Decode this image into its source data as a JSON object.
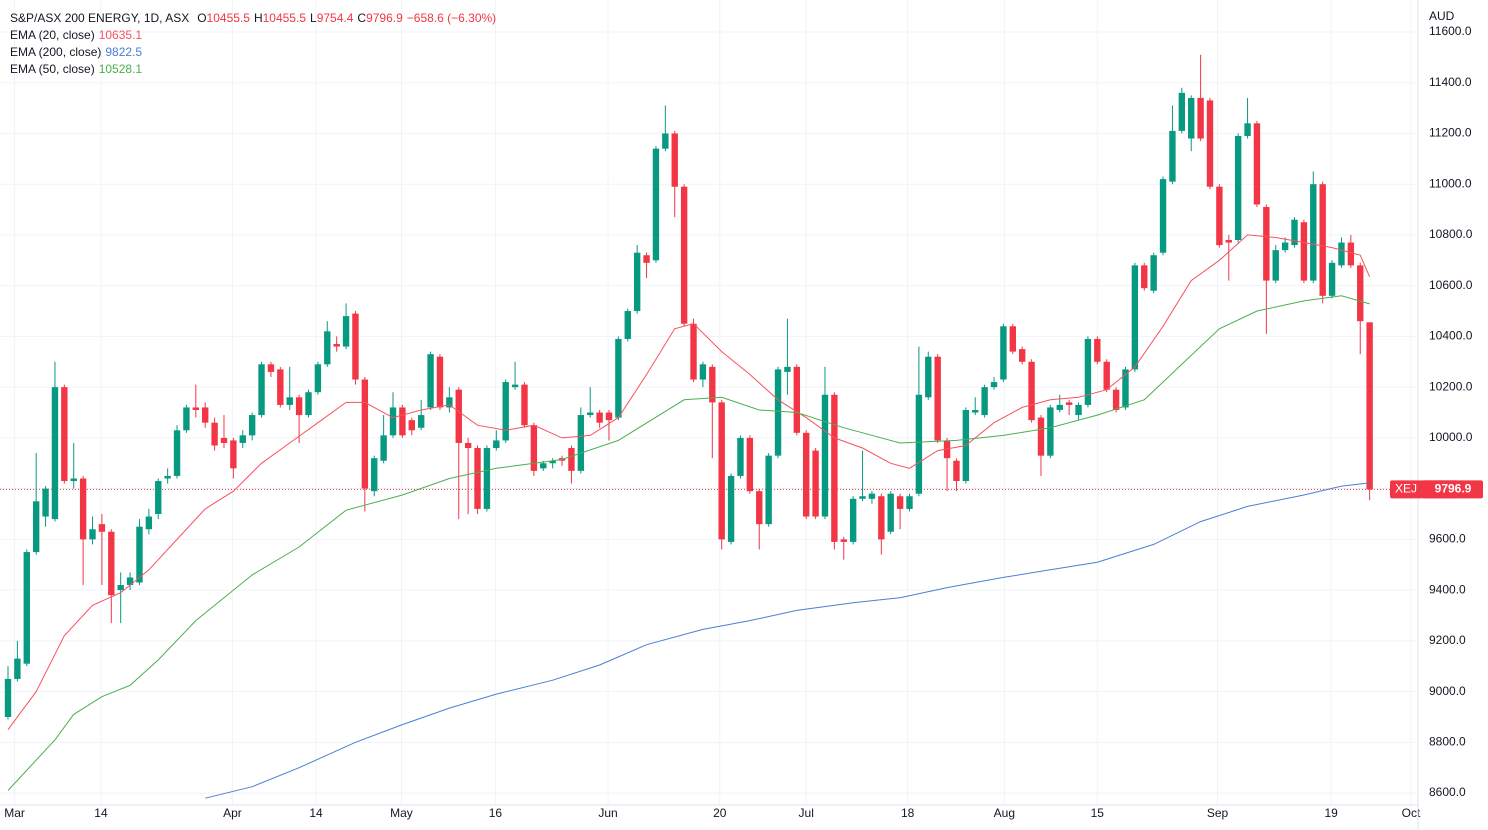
{
  "chart_data": {
    "type": "candlestick",
    "title": "S&P/ASX 200 ENERGY, 1D, ASX",
    "ohlc_labels": [
      "O",
      "H",
      "L",
      "C"
    ],
    "change": "−658.6 (−6.30%)",
    "symbol": "XEJ",
    "unit": "AUD",
    "up_color": "#089981",
    "down_color": "#f23645",
    "grid": true,
    "grid_color": "#f0f3fa",
    "xlim": [
      -0.852,
      150.15
    ],
    "ylim": [
      8553,
      11726
    ],
    "xticks": [
      {
        "value": 0.7,
        "label": "Mar"
      },
      {
        "value": 9.9,
        "label": "14"
      },
      {
        "value": 23.9,
        "label": "Apr"
      },
      {
        "value": 32.8,
        "label": "14"
      },
      {
        "value": 41.9,
        "label": "May"
      },
      {
        "value": 51.9,
        "label": "16"
      },
      {
        "value": 63.9,
        "label": "Jun"
      },
      {
        "value": 75.8,
        "label": "20"
      },
      {
        "value": 85,
        "label": "Jul"
      },
      {
        "value": 95.8,
        "label": "18"
      },
      {
        "value": 106.1,
        "label": "Aug"
      },
      {
        "value": 116,
        "label": "15"
      },
      {
        "value": 128.8,
        "label": "Sep"
      },
      {
        "value": 140.9,
        "label": "19"
      },
      {
        "value": 149.4,
        "label": "Oct"
      }
    ],
    "yticks": [
      {
        "value": 8600,
        "label": "8600.0"
      },
      {
        "value": 8800,
        "label": "8800.0"
      },
      {
        "value": 9000,
        "label": "9000.0"
      },
      {
        "value": 9200,
        "label": "9200.0"
      },
      {
        "value": 9400,
        "label": "9400.0"
      },
      {
        "value": 9600,
        "label": "9600.0"
      },
      {
        "value": 9800,
        "label": "9800.0"
      },
      {
        "value": 10000,
        "label": "10000.0"
      },
      {
        "value": 10200,
        "label": "10200.0"
      },
      {
        "value": 10400,
        "label": "10400.0"
      },
      {
        "value": 10600,
        "label": "10600.0"
      },
      {
        "value": 10800,
        "label": "10800.0"
      },
      {
        "value": 11000,
        "label": "11000.0"
      },
      {
        "value": 11200,
        "label": "11200.0"
      },
      {
        "value": 11400,
        "label": "11400.0"
      },
      {
        "value": 11600,
        "label": "11600.0"
      }
    ],
    "ohlc": [
      [
        8900,
        9100,
        8890,
        9050
      ],
      [
        9050,
        9200,
        9040,
        9130
      ],
      [
        9110,
        9560,
        9100,
        9550
      ],
      [
        9550,
        9940,
        9540,
        9750
      ],
      [
        9690,
        9810,
        9650,
        9800
      ],
      [
        9680,
        10300,
        9670,
        10200
      ],
      [
        10200,
        10210,
        9820,
        9830
      ],
      [
        9830,
        9980,
        9800,
        9840
      ],
      [
        9840,
        9850,
        9420,
        9600
      ],
      [
        9600,
        9690,
        9580,
        9640
      ],
      [
        9660,
        9700,
        9420,
        9630
      ],
      [
        9630,
        9640,
        9270,
        9380
      ],
      [
        9400,
        9470,
        9270,
        9420
      ],
      [
        9420,
        9470,
        9400,
        9450
      ],
      [
        9430,
        9680,
        9420,
        9650
      ],
      [
        9640,
        9720,
        9620,
        9690
      ],
      [
        9700,
        9840,
        9680,
        9830
      ],
      [
        9840,
        9880,
        9820,
        9850
      ],
      [
        9850,
        10050,
        9840,
        10030
      ],
      [
        10030,
        10130,
        10020,
        10120
      ],
      [
        10120,
        10210,
        10080,
        10110
      ],
      [
        10120,
        10140,
        10040,
        10060
      ],
      [
        10060,
        10080,
        9950,
        9970
      ],
      [
        10000,
        10090,
        9960,
        9980
      ],
      [
        9990,
        10000,
        9840,
        9880
      ],
      [
        9980,
        10030,
        9960,
        10010
      ],
      [
        10010,
        10100,
        9990,
        10090
      ],
      [
        10090,
        10300,
        10080,
        10290
      ],
      [
        10290,
        10300,
        10240,
        10260
      ],
      [
        10270,
        10280,
        10120,
        10130
      ],
      [
        10130,
        10280,
        10110,
        10160
      ],
      [
        10160,
        10170,
        9980,
        10090
      ],
      [
        10090,
        10190,
        10080,
        10180
      ],
      [
        10180,
        10300,
        10170,
        10290
      ],
      [
        10290,
        10460,
        10280,
        10420
      ],
      [
        10370,
        10400,
        10340,
        10360
      ],
      [
        10360,
        10530,
        10350,
        10480
      ],
      [
        10490,
        10500,
        10210,
        10230
      ],
      [
        10230,
        10240,
        9710,
        9800
      ],
      [
        9790,
        9930,
        9770,
        9920
      ],
      [
        9910,
        10090,
        9900,
        10010
      ],
      [
        10010,
        10180,
        10000,
        10120
      ],
      [
        10120,
        10130,
        10000,
        10010
      ],
      [
        10070,
        10080,
        10010,
        10030
      ],
      [
        10040,
        10150,
        10030,
        10090
      ],
      [
        10120,
        10340,
        10110,
        10330
      ],
      [
        10320,
        10330,
        10110,
        10120
      ],
      [
        10120,
        10200,
        10100,
        10160
      ],
      [
        10190,
        10200,
        9680,
        9980
      ],
      [
        9980,
        10000,
        9700,
        9960
      ],
      [
        9960,
        9970,
        9700,
        9720
      ],
      [
        9720,
        9970,
        9710,
        9960
      ],
      [
        9960,
        10030,
        9950,
        9990
      ],
      [
        9990,
        10230,
        9980,
        10220
      ],
      [
        10200,
        10300,
        10190,
        10210
      ],
      [
        10210,
        10220,
        10040,
        10050
      ],
      [
        10050,
        10060,
        9850,
        9870
      ],
      [
        9880,
        9910,
        9870,
        9900
      ],
      [
        9900,
        9920,
        9880,
        9910
      ],
      [
        9920,
        9930,
        9890,
        9910
      ],
      [
        9960,
        9970,
        9820,
        9870
      ],
      [
        9870,
        10120,
        9860,
        10090
      ],
      [
        10090,
        10200,
        10080,
        10100
      ],
      [
        10100,
        10110,
        10040,
        10060
      ],
      [
        10100,
        10110,
        9990,
        10070
      ],
      [
        10080,
        10400,
        10070,
        10390
      ],
      [
        10390,
        10510,
        10380,
        10500
      ],
      [
        10500,
        10760,
        10490,
        10730
      ],
      [
        10720,
        10730,
        10630,
        10690
      ],
      [
        10700,
        11150,
        10690,
        11140
      ],
      [
        11140,
        11310,
        11130,
        11200
      ],
      [
        11200,
        11210,
        10870,
        10990
      ],
      [
        10990,
        11000,
        10440,
        10450
      ],
      [
        10450,
        10470,
        10220,
        10230
      ],
      [
        10230,
        10300,
        10200,
        10290
      ],
      [
        10280,
        10290,
        9920,
        10140
      ],
      [
        10140,
        10150,
        9560,
        9600
      ],
      [
        9590,
        9860,
        9580,
        9850
      ],
      [
        9850,
        10010,
        9840,
        10000
      ],
      [
        10000,
        10010,
        9780,
        9790
      ],
      [
        9790,
        9800,
        9560,
        9660
      ],
      [
        9660,
        9940,
        9650,
        9930
      ],
      [
        9930,
        10280,
        9920,
        10270
      ],
      [
        10260,
        10470,
        10170,
        10280
      ],
      [
        10280,
        10290,
        10010,
        10020
      ],
      [
        10020,
        10030,
        9680,
        9690
      ],
      [
        9950,
        9960,
        9680,
        9690
      ],
      [
        9690,
        10280,
        9680,
        10170
      ],
      [
        10170,
        10180,
        9560,
        9590
      ],
      [
        9600,
        9610,
        9520,
        9590
      ],
      [
        9590,
        9770,
        9580,
        9760
      ],
      [
        9760,
        9950,
        9750,
        9770
      ],
      [
        9760,
        9790,
        9740,
        9780
      ],
      [
        9770,
        9780,
        9540,
        9600
      ],
      [
        9630,
        9790,
        9620,
        9780
      ],
      [
        9770,
        9780,
        9640,
        9720
      ],
      [
        9720,
        9780,
        9710,
        9770
      ],
      [
        9780,
        10360,
        9770,
        10170
      ],
      [
        10160,
        10340,
        10150,
        10320
      ],
      [
        10320,
        10330,
        9980,
        9990
      ],
      [
        9990,
        10000,
        9790,
        9920
      ],
      [
        9910,
        9920,
        9790,
        9830
      ],
      [
        9830,
        10120,
        9820,
        10110
      ],
      [
        10100,
        10160,
        10090,
        10110
      ],
      [
        10090,
        10210,
        10080,
        10200
      ],
      [
        10200,
        10240,
        10190,
        10220
      ],
      [
        10230,
        10450,
        10220,
        10440
      ],
      [
        10440,
        10450,
        10330,
        10340
      ],
      [
        10350,
        10360,
        10290,
        10300
      ],
      [
        10300,
        10310,
        10060,
        10070
      ],
      [
        10080,
        10090,
        9850,
        9930
      ],
      [
        9930,
        10130,
        9920,
        10120
      ],
      [
        10110,
        10170,
        10100,
        10130
      ],
      [
        10140,
        10150,
        10090,
        10130
      ],
      [
        10090,
        10140,
        10070,
        10130
      ],
      [
        10130,
        10400,
        10120,
        10390
      ],
      [
        10390,
        10400,
        10290,
        10300
      ],
      [
        10300,
        10310,
        10180,
        10190
      ],
      [
        10190,
        10200,
        10100,
        10110
      ],
      [
        10120,
        10280,
        10110,
        10270
      ],
      [
        10270,
        10690,
        10260,
        10680
      ],
      [
        10680,
        10690,
        10580,
        10590
      ],
      [
        10580,
        10730,
        10570,
        10720
      ],
      [
        10730,
        11030,
        10720,
        11020
      ],
      [
        11010,
        11310,
        11000,
        11210
      ],
      [
        11210,
        11380,
        11200,
        11360
      ],
      [
        11180,
        11350,
        11130,
        11340
      ],
      [
        11340,
        11510,
        11170,
        11180
      ],
      [
        11330,
        11340,
        10980,
        10990
      ],
      [
        10990,
        11000,
        10750,
        10760
      ],
      [
        10780,
        10800,
        10620,
        10770
      ],
      [
        10780,
        11200,
        10770,
        11190
      ],
      [
        11190,
        11340,
        11180,
        11240
      ],
      [
        11240,
        11250,
        10910,
        10920
      ],
      [
        10910,
        10920,
        10410,
        10620
      ],
      [
        10620,
        10760,
        10610,
        10740
      ],
      [
        10740,
        10790,
        10730,
        10770
      ],
      [
        10760,
        10870,
        10750,
        10860
      ],
      [
        10850,
        10860,
        10610,
        10620
      ],
      [
        10620,
        11050,
        10610,
        11000
      ],
      [
        11000,
        11010,
        10530,
        10560
      ],
      [
        10560,
        10700,
        10550,
        10690
      ],
      [
        10680,
        10790,
        10670,
        10770
      ],
      [
        10770,
        10800,
        10670,
        10680
      ],
      [
        10680,
        10690,
        10330,
        10460
      ],
      [
        10455.5,
        10455.5,
        9754.4,
        9796.9
      ]
    ],
    "series": [
      {
        "name": "EMA (20, close)",
        "color": "#f7525f",
        "x": [
          0,
          3,
          6,
          9,
          12,
          15,
          18,
          21,
          24,
          27,
          30,
          33,
          36,
          38,
          41,
          44,
          47,
          50,
          53,
          56,
          59,
          62,
          65,
          68,
          71,
          73,
          76,
          79,
          82,
          85,
          88,
          91,
          94,
          96,
          99,
          102,
          105,
          108,
          111,
          114,
          117,
          120,
          123,
          126,
          129,
          132,
          135,
          138,
          141,
          144,
          145
        ],
        "values": [
          8850,
          9000,
          9220,
          9340,
          9390,
          9480,
          9600,
          9720,
          9790,
          9900,
          9980,
          10060,
          10140,
          10140,
          10080,
          10110,
          10130,
          10050,
          10030,
          10050,
          10000,
          10010,
          10080,
          10250,
          10430,
          10450,
          10340,
          10250,
          10150,
          10080,
          10000,
          9960,
          9900,
          9880,
          9950,
          9970,
          10060,
          10120,
          10150,
          10160,
          10190,
          10280,
          10440,
          10620,
          10700,
          10800,
          10790,
          10770,
          10750,
          10720,
          10635.1
        ]
      },
      {
        "name": "EMA (200, close)",
        "color": "#4a80d4",
        "x": [
          21,
          26,
          31,
          37,
          42,
          47,
          52,
          58,
          63,
          68,
          74,
          79,
          84,
          90,
          95,
          100,
          106,
          111,
          116,
          122,
          127,
          132,
          138,
          142,
          145
        ],
        "values": [
          8580,
          8625,
          8700,
          8800,
          8870,
          8935,
          8990,
          9045,
          9105,
          9185,
          9245,
          9280,
          9320,
          9350,
          9370,
          9410,
          9450,
          9480,
          9510,
          9580,
          9670,
          9730,
          9775,
          9810,
          9822.5
        ]
      },
      {
        "name": "EMA (50, close)",
        "color": "#4caf50",
        "x": [
          0,
          5,
          7,
          10,
          13,
          16,
          20,
          26,
          31,
          36,
          42,
          47,
          52,
          59,
          65,
          72,
          76,
          80,
          84,
          89,
          95,
          101,
          106,
          111,
          116,
          121,
          125,
          129,
          133,
          138,
          142,
          145
        ],
        "values": [
          8610,
          8810,
          8910,
          8980,
          9025,
          9125,
          9280,
          9460,
          9570,
          9715,
          9775,
          9840,
          9880,
          9915,
          9990,
          10150,
          10160,
          10110,
          10100,
          10040,
          9980,
          9990,
          10010,
          10040,
          10090,
          10150,
          10290,
          10430,
          10500,
          10540,
          10560,
          10528.1
        ]
      }
    ]
  }
}
